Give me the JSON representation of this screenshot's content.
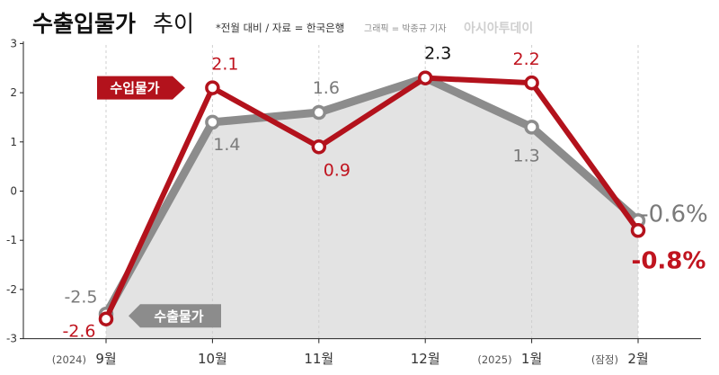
{
  "header": {
    "title_bold": "수출입물가",
    "title_rest": "추이",
    "note": "*전월 대비 / 자료 = 한국은행",
    "credit": "그래픽 = 박종규 기자",
    "brand": "아시아투데이"
  },
  "colors": {
    "import": "#b3121c",
    "export": "#8c8c8c",
    "import_label": "#c0141f",
    "export_label": "#7a7a7a",
    "area": "#e3e3e3",
    "axis": "#222222",
    "grid": "#cfcfcf"
  },
  "chart_data": {
    "type": "line",
    "categories": [
      "9월",
      "10월",
      "11월",
      "12월",
      "1월",
      "2월"
    ],
    "category_prefixes": [
      "(2024)",
      "",
      "",
      "",
      "(2025)",
      "(잠정)"
    ],
    "series": [
      {
        "name": "수입물가",
        "values": [
          -2.6,
          2.1,
          0.9,
          2.3,
          2.2,
          -0.8
        ]
      },
      {
        "name": "수출물가",
        "values": [
          -2.5,
          1.4,
          1.6,
          2.3,
          1.3,
          -0.6
        ]
      }
    ],
    "data_labels": {
      "수입물가": [
        "-2.6",
        "2.1",
        "0.9",
        "",
        "2.2",
        "-0.8%"
      ],
      "수출물가": [
        "-2.5",
        "1.4",
        "1.6",
        "2.3",
        "1.3",
        "-0.6%"
      ]
    },
    "yticks": [
      "3",
      "2",
      "1",
      "0",
      "-1",
      "-2",
      "-3"
    ],
    "ylim": [
      -3,
      3
    ],
    "grid": "vertical dashed at each category",
    "legend": "inline tags next to lines"
  }
}
